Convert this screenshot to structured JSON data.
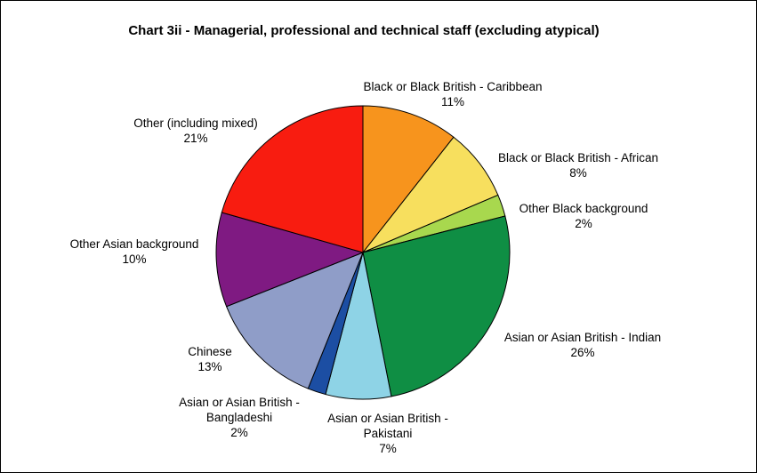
{
  "chart_data": {
    "type": "pie",
    "title": "Chart 3ii - Managerial, professional and technical staff (excluding atypical)",
    "slices": [
      {
        "label_lines": [
          "Black or Black British - Caribbean"
        ],
        "percent_label": "11%",
        "value": 10.6,
        "color": "#F7941D"
      },
      {
        "label_lines": [
          "Black or Black British - African"
        ],
        "percent_label": "8%",
        "value": 8.0,
        "color": "#F7DF5E"
      },
      {
        "label_lines": [
          "Other Black background"
        ],
        "percent_label": "2%",
        "value": 2.4,
        "color": "#A8D84E"
      },
      {
        "label_lines": [
          "Asian or Asian British - Indian"
        ],
        "percent_label": "26%",
        "value": 25.9,
        "color": "#0F8E44"
      },
      {
        "label_lines": [
          "Asian or Asian British -",
          "Pakistani"
        ],
        "percent_label": "7%",
        "value": 7.2,
        "color": "#8ED3E6"
      },
      {
        "label_lines": [
          "Asian or Asian British -",
          "Bangladeshi"
        ],
        "percent_label": "2%",
        "value": 2.0,
        "color": "#1C4EA3"
      },
      {
        "label_lines": [
          "Chinese"
        ],
        "percent_label": "13%",
        "value": 12.9,
        "color": "#8F9DC8"
      },
      {
        "label_lines": [
          "Other Asian background"
        ],
        "percent_label": "10%",
        "value": 10.4,
        "color": "#7F1A82"
      },
      {
        "label_lines": [
          "Other (including mixed)"
        ],
        "percent_label": "21%",
        "value": 20.6,
        "color": "#F81C10"
      }
    ],
    "start_angle": "12 o'clock",
    "direction": "clockwise",
    "legend": "none"
  }
}
